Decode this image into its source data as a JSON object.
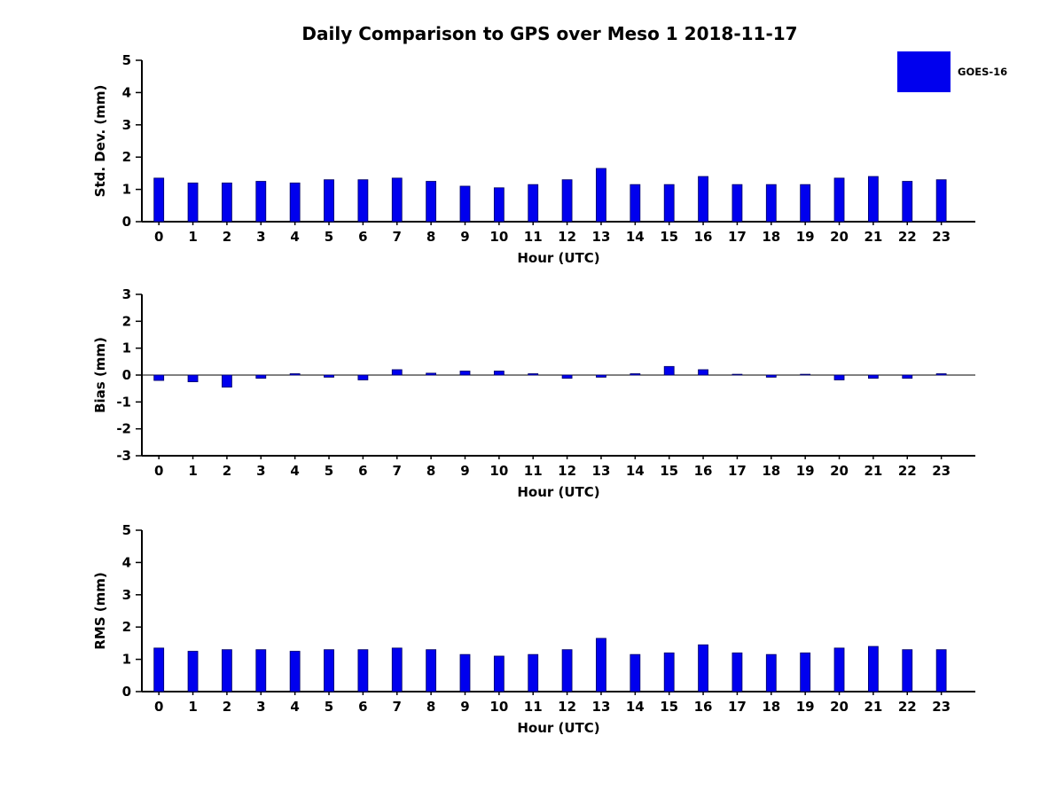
{
  "title": "Daily Comparison to GPS over Meso 1 2018-11-17",
  "legend": {
    "label": "GOES-16",
    "color": "#0000EE",
    "position": "top-right-outside"
  },
  "chart_data": [
    {
      "type": "bar",
      "title": "",
      "xlabel": "Hour (UTC)",
      "ylabel": "Std. Dev. (mm)",
      "ylim": [
        0,
        5
      ],
      "yticks": [
        0,
        1,
        2,
        3,
        4,
        5
      ],
      "grid": false,
      "categories": [
        0,
        1,
        2,
        3,
        4,
        5,
        6,
        7,
        8,
        9,
        10,
        11,
        12,
        13,
        14,
        15,
        16,
        17,
        18,
        19,
        20,
        21,
        22,
        23
      ],
      "series": [
        {
          "name": "GOES-16",
          "color": "#0000EE",
          "values": [
            1.35,
            1.2,
            1.2,
            1.25,
            1.2,
            1.3,
            1.3,
            1.35,
            1.25,
            1.1,
            1.05,
            1.15,
            1.3,
            1.65,
            1.15,
            1.15,
            1.4,
            1.15,
            1.15,
            1.15,
            1.35,
            1.4,
            1.25,
            1.3
          ]
        }
      ]
    },
    {
      "type": "bar",
      "title": "",
      "xlabel": "Hour (UTC)",
      "ylabel": "Bias (mm)",
      "ylim": [
        -3,
        3
      ],
      "yticks": [
        -3,
        -2,
        -1,
        0,
        1,
        2,
        3
      ],
      "grid": false,
      "categories": [
        0,
        1,
        2,
        3,
        4,
        5,
        6,
        7,
        8,
        9,
        10,
        11,
        12,
        13,
        14,
        15,
        16,
        17,
        18,
        19,
        20,
        21,
        22,
        23
      ],
      "series": [
        {
          "name": "GOES-16",
          "color": "#0000EE",
          "values": [
            -0.2,
            -0.25,
            -0.45,
            -0.12,
            0.05,
            -0.08,
            -0.18,
            0.2,
            0.07,
            0.15,
            0.15,
            0.05,
            -0.12,
            -0.08,
            0.05,
            0.32,
            0.2,
            0.03,
            -0.08,
            0.03,
            -0.18,
            -0.12,
            -0.12,
            0.05
          ]
        }
      ]
    },
    {
      "type": "bar",
      "title": "",
      "xlabel": "Hour (UTC)",
      "ylabel": "RMS (mm)",
      "ylim": [
        0,
        5
      ],
      "yticks": [
        0,
        1,
        2,
        3,
        4,
        5
      ],
      "grid": false,
      "categories": [
        0,
        1,
        2,
        3,
        4,
        5,
        6,
        7,
        8,
        9,
        10,
        11,
        12,
        13,
        14,
        15,
        16,
        17,
        18,
        19,
        20,
        21,
        22,
        23
      ],
      "series": [
        {
          "name": "GOES-16",
          "color": "#0000EE",
          "values": [
            1.35,
            1.25,
            1.3,
            1.3,
            1.25,
            1.3,
            1.3,
            1.35,
            1.3,
            1.15,
            1.1,
            1.15,
            1.3,
            1.65,
            1.15,
            1.2,
            1.45,
            1.2,
            1.15,
            1.2,
            1.35,
            1.4,
            1.3,
            1.3
          ]
        }
      ]
    }
  ]
}
